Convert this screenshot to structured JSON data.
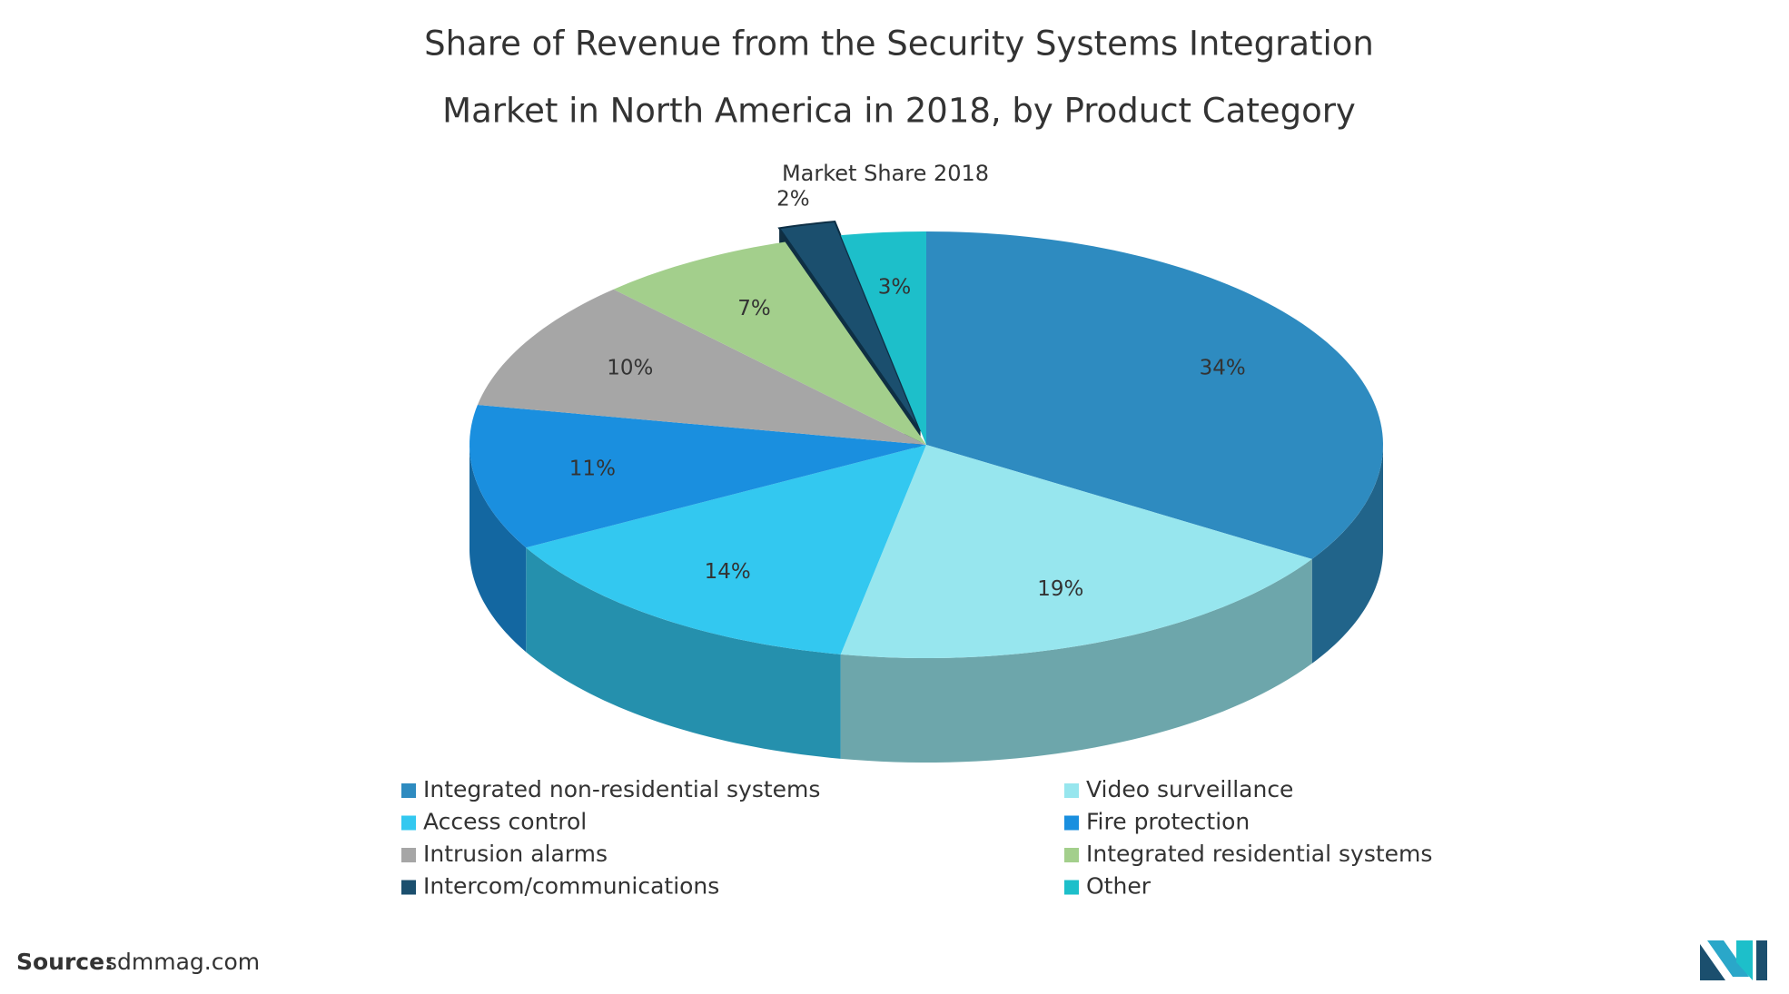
{
  "chart_data": {
    "type": "pie3d",
    "title": [
      "Share of Revenue from the Security Systems Integration",
      "Market in North America in 2018, by Product Category"
    ],
    "subtitle": "Market Share 2018",
    "categories": [
      "Integrated non-residential systems",
      "Video surveillance",
      "Access control",
      "Fire protection",
      "Intrusion alarms",
      "Integrated residential systems",
      "Intercom/communications",
      "Other"
    ],
    "values": [
      34,
      19,
      14,
      11,
      10,
      7,
      2,
      3
    ],
    "value_labels": [
      "34%",
      "19%",
      "14%",
      "11%",
      "10%",
      "7%",
      "2%",
      "3%"
    ],
    "colors": [
      "#2e8bc0",
      "#97e6ee",
      "#33c8f0",
      "#1a8fdf",
      "#a6a6a6",
      "#a3cf8c",
      "#1b4f6e",
      "#1dbfca"
    ],
    "exploded": [
      false,
      false,
      false,
      false,
      false,
      false,
      true,
      false
    ],
    "legend": "bottom",
    "source_label": "Source:",
    "source": "sdmmag.com"
  }
}
